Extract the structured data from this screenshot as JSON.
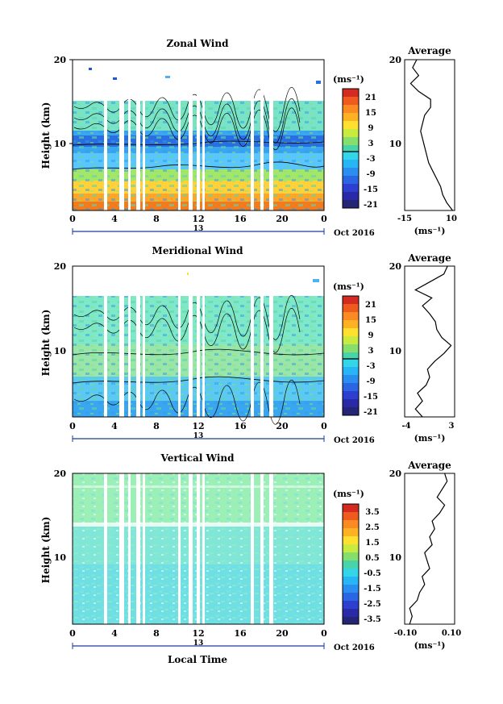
{
  "date_label": "Oct 2016",
  "xlabel": "Local Time",
  "xticks": [
    "0",
    "4",
    "8",
    "12",
    "16",
    "20",
    "0"
  ],
  "day_label": "13",
  "unit_label": "(ms⁻¹)",
  "yticks": [
    "10",
    "20"
  ],
  "ylabel": "Height (km)",
  "chart_data": [
    {
      "type": "heatmap",
      "title": "Zonal Wind",
      "ylabel": "Height (km)",
      "xlabel": "",
      "xlim": [
        0,
        24
      ],
      "ylim": [
        1,
        20
      ],
      "colorbar_label": "(ms⁻¹)",
      "colorbar_ticks": [
        "21",
        "15",
        "9",
        "3",
        "-3",
        "-9",
        "-15",
        "-21"
      ],
      "colorbar_range": [
        -24,
        24
      ],
      "profile": {
        "title": "Average",
        "xlabel": "(ms⁻¹)",
        "xticks": [
          "-15",
          "10"
        ],
        "xlim": [
          -15,
          10
        ],
        "heights": [
          1,
          2,
          3,
          4,
          5,
          6,
          7,
          8,
          9,
          10,
          11,
          12,
          13,
          14,
          15,
          16,
          17,
          18,
          19,
          20
        ],
        "values": [
          9,
          6,
          4,
          3,
          1,
          -1,
          -3,
          -4,
          -5,
          -6,
          -7,
          -6,
          -5,
          -2,
          -2,
          -8,
          -12,
          -8,
          -11,
          -9
        ]
      }
    },
    {
      "type": "heatmap",
      "title": "Meridional Wind",
      "ylabel": "Height (km)",
      "xlabel": "",
      "xlim": [
        0,
        24
      ],
      "ylim": [
        1,
        20
      ],
      "colorbar_label": "(ms⁻¹)",
      "colorbar_ticks": [
        "21",
        "15",
        "9",
        "3",
        "-3",
        "-9",
        "-15",
        "-21"
      ],
      "colorbar_range": [
        -24,
        24
      ],
      "profile": {
        "title": "Average",
        "xlabel": "(ms⁻¹)",
        "xticks": [
          "-4",
          "3"
        ],
        "xlim": [
          -4,
          3
        ],
        "heights": [
          1,
          2,
          3,
          4,
          5,
          6,
          7,
          8,
          9,
          10,
          11,
          12,
          13,
          14,
          15,
          16,
          17,
          18,
          19,
          20
        ],
        "values": [
          -1.5,
          -2.5,
          -1.5,
          -2.2,
          -1.0,
          -0.5,
          -0.8,
          0.2,
          1.5,
          2.5,
          1.2,
          0.5,
          0.3,
          -0.5,
          -1.5,
          -0.2,
          -2.5,
          -0.5,
          1.5,
          2.0
        ]
      }
    },
    {
      "type": "heatmap",
      "title": "Vertical Wind",
      "ylabel": "Height (km)",
      "xlabel": "Local Time",
      "xlim": [
        0,
        24
      ],
      "ylim": [
        1,
        20
      ],
      "colorbar_label": "(ms⁻¹)",
      "colorbar_ticks": [
        "3.5",
        "2.5",
        "1.5",
        "0.5",
        "-0.5",
        "-1.5",
        "-2.5",
        "-3.5"
      ],
      "colorbar_range": [
        -4,
        4
      ],
      "profile": {
        "title": "Average",
        "xlabel": "(ms⁻¹)",
        "xticks": [
          "-0.10",
          "0.10"
        ],
        "xlim": [
          -0.1,
          0.1
        ],
        "heights": [
          1,
          2,
          3,
          4,
          5,
          6,
          7,
          8,
          9,
          10,
          11,
          12,
          13,
          14,
          15,
          16,
          17,
          18,
          19,
          20
        ],
        "values": [
          -0.08,
          -0.07,
          -0.08,
          -0.05,
          -0.04,
          -0.02,
          -0.03,
          0.0,
          -0.01,
          -0.02,
          0.01,
          0.0,
          0.02,
          0.01,
          0.04,
          0.06,
          0.03,
          0.05,
          0.07,
          0.06
        ]
      }
    }
  ]
}
